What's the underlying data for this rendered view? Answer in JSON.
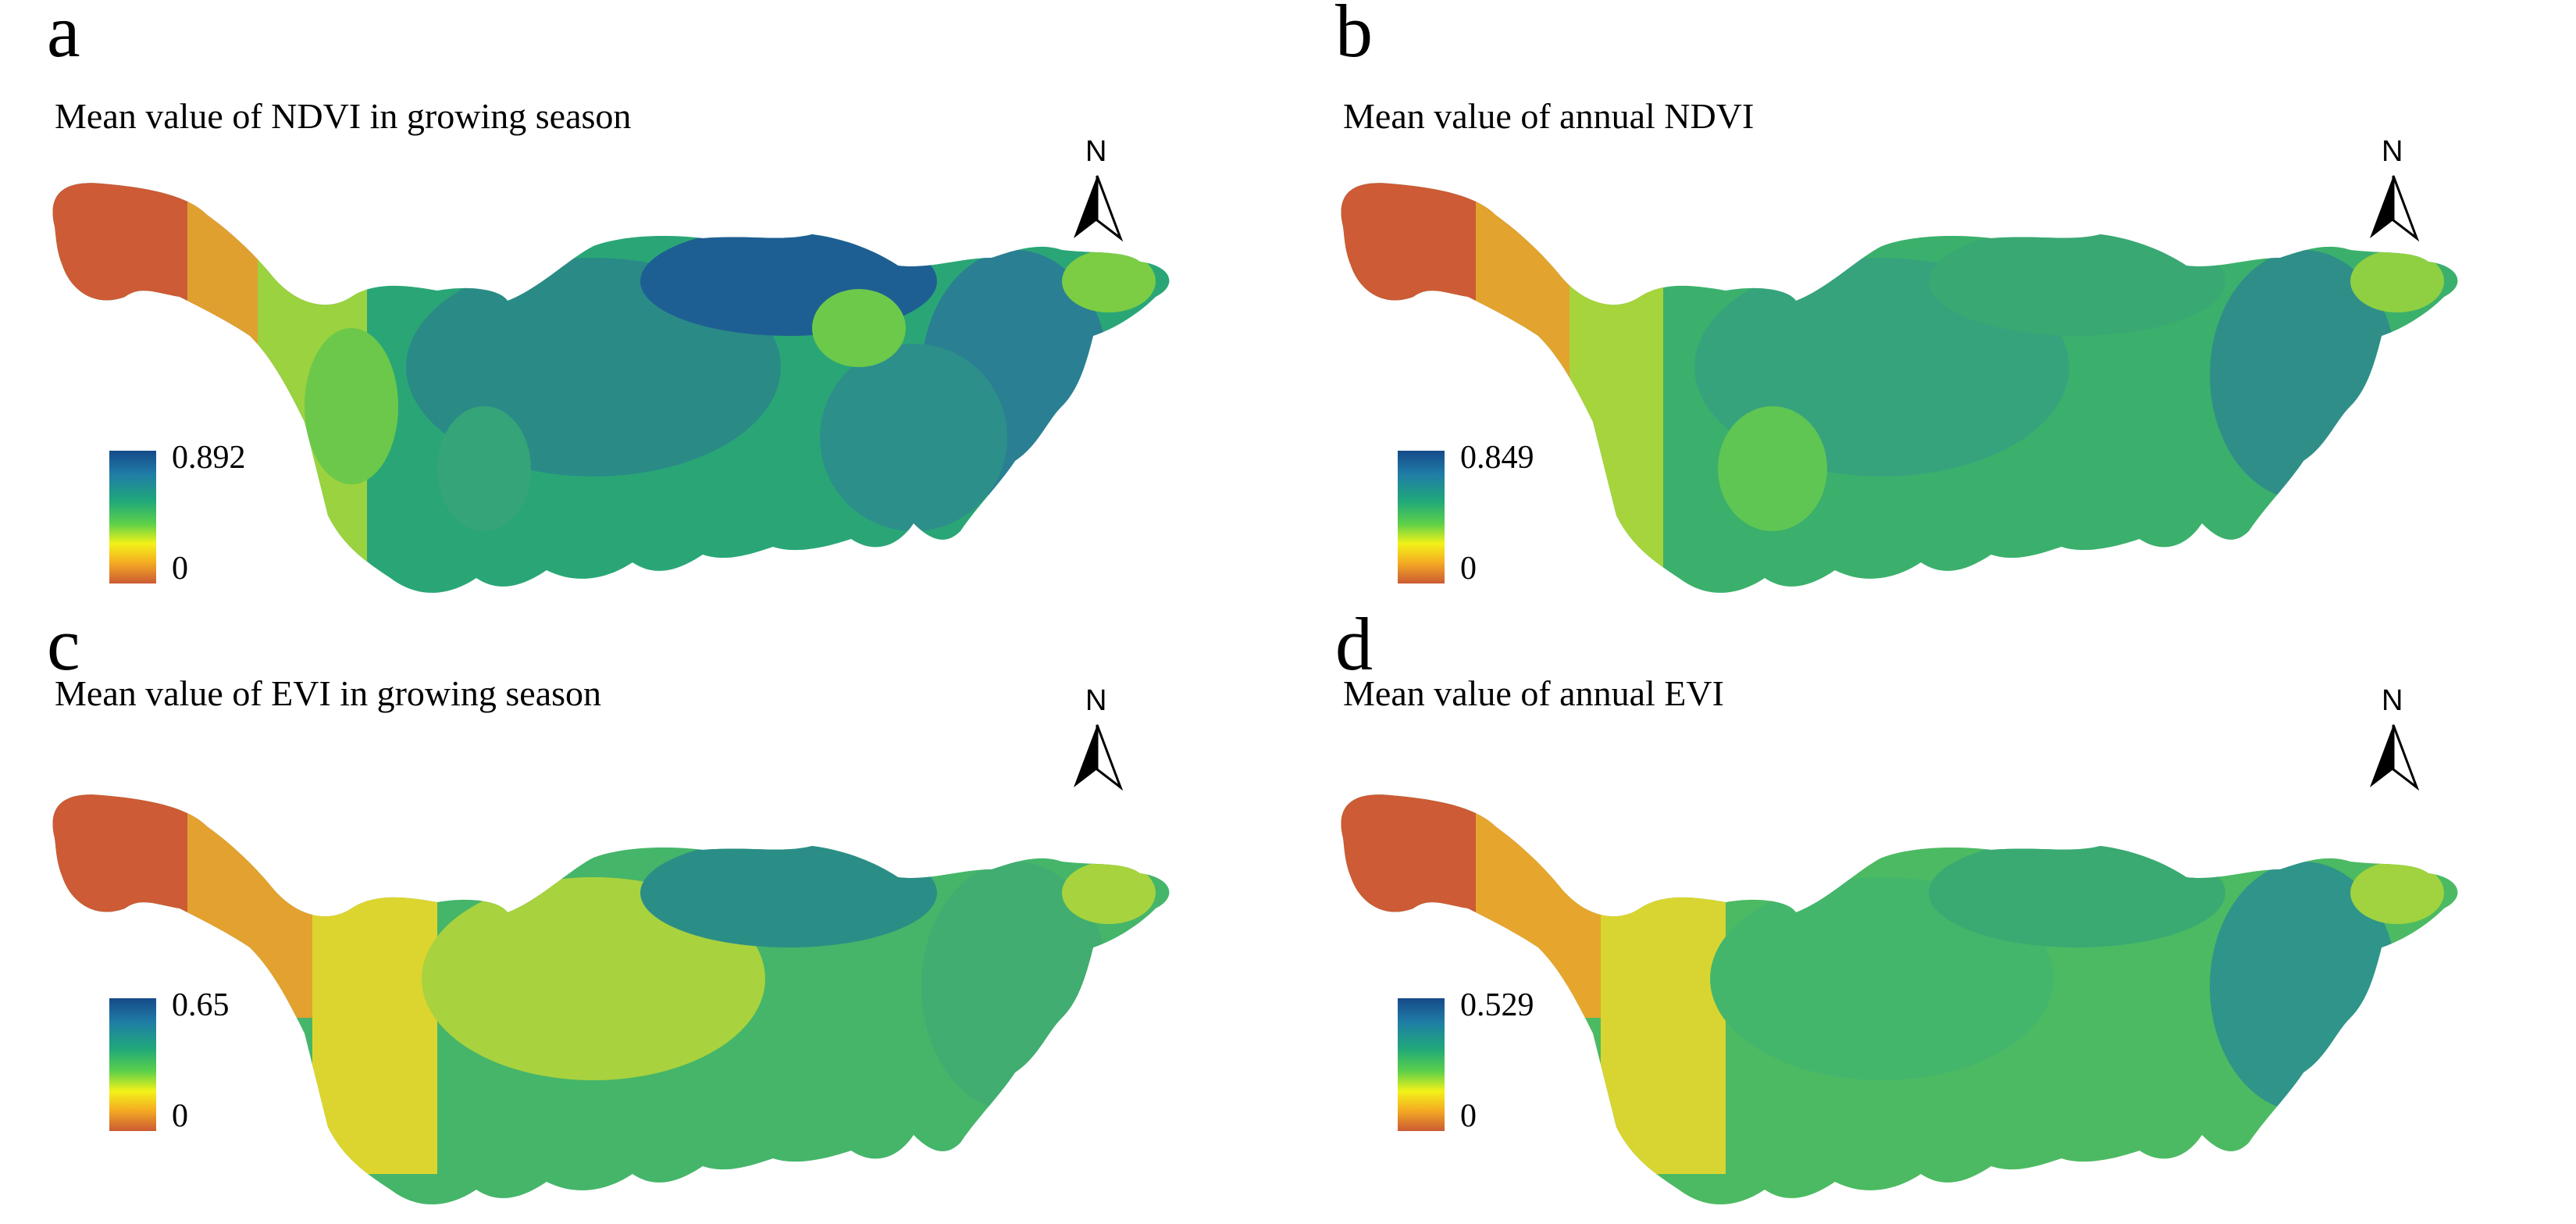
{
  "panels": [
    {
      "letter": "a",
      "title": "Mean value of NDVI in growing season",
      "legend": {
        "max": "0.892",
        "min": "0"
      },
      "north_label": "N"
    },
    {
      "letter": "b",
      "title": "Mean value of annual NDVI",
      "legend": {
        "max": "0.849",
        "min": "0"
      },
      "north_label": "N"
    },
    {
      "letter": "c",
      "title": "Mean value of EVI in growing season",
      "legend": {
        "max": "0.65",
        "min": "0"
      },
      "north_label": "N"
    },
    {
      "letter": "d",
      "title": "Mean value of annual EVI",
      "legend": {
        "max": "0.529",
        "min": "0"
      },
      "north_label": "N"
    }
  ],
  "colors": {
    "high": "#164a8a",
    "mid_high": "#20a87a",
    "mid": "#5cd04a",
    "low_mid": "#f2f218",
    "low": "#cc5a34"
  }
}
